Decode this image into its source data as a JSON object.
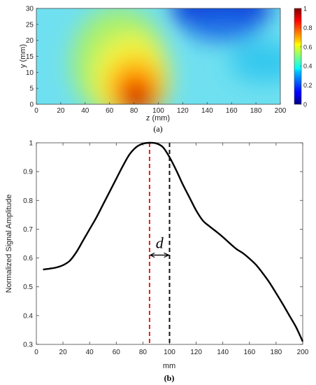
{
  "chart_data": [
    {
      "type": "heatmap",
      "panel_label": "(a)",
      "xlabel": "z (mm)",
      "ylabel": "y (mm)",
      "xlim": [
        0,
        200
      ],
      "ylim": [
        0,
        30
      ],
      "xticks": [
        "0",
        "20",
        "40",
        "60",
        "80",
        "100",
        "120",
        "140",
        "160",
        "180",
        "200"
      ],
      "yticks": [
        "0",
        "5",
        "10",
        "15",
        "20",
        "25",
        "30"
      ],
      "colorbar": {
        "range": [
          0,
          1
        ],
        "ticks": [
          "0",
          "0.2",
          "0.4",
          "0.6",
          "0.8",
          "1"
        ],
        "colormap": "jet"
      },
      "features": [
        {
          "description_value": "peak",
          "z": 82,
          "y": 2,
          "value": 1.0
        },
        {
          "description_value": "minimum",
          "z": 145,
          "y": 28,
          "value": 0.08
        }
      ]
    },
    {
      "type": "line",
      "panel_label": "(b)",
      "xlabel": "mm",
      "ylabel": "Normalized Signal Amplitude",
      "xlim": [
        0,
        200
      ],
      "ylim": [
        0.3,
        1
      ],
      "xticks": [
        "0",
        "20",
        "40",
        "60",
        "80",
        "100",
        "120",
        "140",
        "160",
        "180",
        "200"
      ],
      "yticks": [
        "0.3",
        "0.4",
        "0.5",
        "0.6",
        "0.7",
        "0.8",
        "0.9",
        "1"
      ],
      "series": [
        {
          "x": [
            5,
            10,
            15,
            20,
            25,
            30,
            35,
            40,
            45,
            50,
            55,
            60,
            65,
            70,
            75,
            80,
            85,
            90,
            95,
            100,
            105,
            110,
            115,
            120,
            125,
            130,
            135,
            140,
            145,
            150,
            155,
            160,
            165,
            170,
            175,
            180,
            185,
            190,
            195,
            200
          ],
          "y": [
            0.56,
            0.563,
            0.567,
            0.575,
            0.59,
            0.62,
            0.66,
            0.7,
            0.74,
            0.785,
            0.83,
            0.875,
            0.92,
            0.96,
            0.985,
            0.997,
            1.0,
            0.998,
            0.985,
            0.95,
            0.905,
            0.855,
            0.81,
            0.765,
            0.73,
            0.71,
            0.692,
            0.673,
            0.652,
            0.632,
            0.617,
            0.598,
            0.576,
            0.547,
            0.515,
            0.478,
            0.44,
            0.4,
            0.36,
            0.31
          ],
          "color": "#000000"
        }
      ],
      "reference_lines": [
        {
          "x": 85,
          "color": "#e02020",
          "style": "dashed"
        },
        {
          "x": 100,
          "color": "#111111",
          "style": "dashed"
        }
      ],
      "annotation": {
        "text": "d",
        "from_x": 85,
        "to_x": 100,
        "y": 0.61
      }
    }
  ]
}
